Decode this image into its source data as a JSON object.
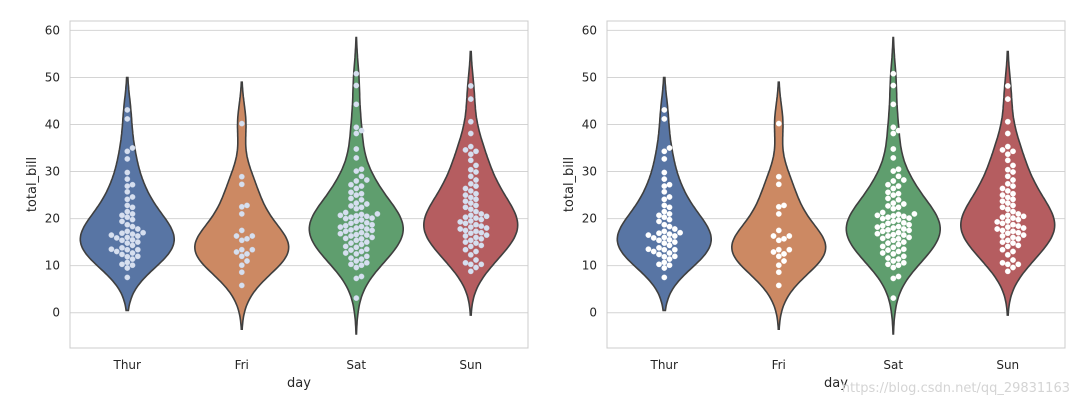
{
  "figure": {
    "watermark": "https://blog.csdn.net/qq_29831163"
  },
  "chart_data": [
    {
      "type": "violin",
      "title": "",
      "xlabel": "day",
      "ylabel": "total_bill",
      "categories": [
        "Thur",
        "Fri",
        "Sat",
        "Sun"
      ],
      "yticks": [
        0,
        10,
        20,
        30,
        40,
        50,
        60
      ],
      "ylim": [
        -7.5,
        62
      ],
      "grid": true,
      "point_color": "#d6dfef",
      "colors": [
        "#5875a4",
        "#cc8963",
        "#5f9e6e",
        "#b55d60"
      ],
      "series": [
        {
          "name": "Thur",
          "range": [
            0.5,
            50
          ],
          "median": 16.2,
          "points": [
            7.5,
            9.5,
            10.1,
            10.3,
            10.7,
            11.4,
            11.9,
            12.0,
            12.4,
            12.7,
            13.0,
            13.4,
            13.4,
            13.5,
            13.8,
            14.3,
            14.8,
            15.0,
            15.4,
            15.5,
            15.9,
            16.0,
            16.3,
            16.5,
            16.7,
            16.9,
            17.0,
            17.3,
            17.8,
            18.3,
            18.7,
            19.4,
            19.8,
            20.3,
            20.7,
            21.0,
            21.5,
            22.4,
            22.8,
            24.1,
            24.6,
            25.7,
            26.9,
            27.2,
            28.4,
            29.8,
            32.7,
            34.3,
            35.0,
            41.2,
            43.1
          ]
        },
        {
          "name": "Fri",
          "range": [
            -3.5,
            49
          ],
          "median": 15.4,
          "points": [
            5.8,
            8.6,
            10.1,
            11.0,
            12.0,
            12.5,
            12.9,
            13.4,
            13.4,
            15.4,
            15.7,
            16.3,
            16.3,
            17.5,
            21.0,
            22.5,
            22.8,
            27.3,
            28.9,
            40.2
          ]
        },
        {
          "name": "Sat",
          "range": [
            -4.5,
            58.5
          ],
          "median": 18.2,
          "points": [
            3.1,
            7.3,
            7.7,
            9.6,
            10.1,
            10.3,
            10.6,
            11.0,
            11.4,
            11.6,
            12.0,
            12.5,
            12.7,
            13.0,
            13.3,
            13.5,
            13.9,
            14.1,
            14.5,
            14.8,
            15.0,
            15.4,
            15.7,
            15.8,
            16.0,
            16.3,
            16.5,
            16.6,
            16.8,
            17.0,
            17.3,
            17.5,
            17.6,
            17.8,
            18.0,
            18.2,
            18.3,
            18.5,
            18.7,
            19.0,
            19.1,
            19.4,
            19.7,
            20.0,
            20.1,
            20.3,
            20.5,
            20.6,
            20.7,
            20.9,
            21.0,
            21.3,
            22.1,
            22.4,
            22.7,
            23.1,
            23.3,
            24.0,
            24.3,
            25.0,
            25.3,
            25.6,
            26.4,
            26.9,
            27.2,
            28.0,
            28.2,
            29.0,
            30.1,
            30.5,
            32.9,
            34.8,
            38.1,
            38.7,
            39.4,
            44.3,
            48.3,
            50.8
          ]
        },
        {
          "name": "Sun",
          "range": [
            -0.5,
            55.5
          ],
          "median": 19.6,
          "points": [
            8.8,
            9.6,
            10.3,
            10.3,
            10.6,
            11.2,
            12.3,
            13.0,
            13.4,
            14.1,
            14.3,
            14.8,
            15.0,
            15.4,
            15.7,
            16.0,
            16.3,
            16.5,
            16.9,
            17.0,
            17.3,
            17.5,
            17.8,
            18.0,
            18.2,
            18.4,
            18.7,
            19.0,
            19.3,
            19.5,
            19.8,
            20.1,
            20.3,
            20.5,
            20.7,
            21.0,
            21.5,
            22.0,
            22.4,
            22.8,
            23.3,
            23.7,
            24.1,
            24.5,
            25.0,
            25.3,
            25.9,
            26.4,
            26.9,
            27.4,
            28.2,
            29.0,
            29.9,
            30.4,
            31.3,
            32.4,
            33.7,
            34.3,
            34.6,
            35.3,
            38.1,
            40.6,
            45.4,
            48.2
          ]
        }
      ]
    },
    {
      "type": "violin",
      "title": "",
      "xlabel": "day",
      "ylabel": "total_bill",
      "categories": [
        "Thur",
        "Fri",
        "Sat",
        "Sun"
      ],
      "yticks": [
        0,
        10,
        20,
        30,
        40,
        50,
        60
      ],
      "ylim": [
        -7.5,
        62
      ],
      "grid": true,
      "point_color": "#ffffff",
      "colors": [
        "#5875a4",
        "#cc8963",
        "#5f9e6e",
        "#b55d60"
      ],
      "series": [
        {
          "name": "Thur",
          "range": [
            0.5,
            50
          ],
          "median": 16.2,
          "points": [
            7.5,
            9.5,
            10.1,
            10.3,
            10.7,
            11.4,
            11.9,
            12.0,
            12.4,
            12.7,
            13.0,
            13.4,
            13.4,
            13.5,
            13.8,
            14.3,
            14.8,
            15.0,
            15.4,
            15.5,
            15.9,
            16.0,
            16.3,
            16.5,
            16.7,
            16.9,
            17.0,
            17.3,
            17.8,
            18.3,
            18.7,
            19.4,
            19.8,
            20.3,
            20.7,
            21.0,
            21.5,
            22.4,
            22.8,
            24.1,
            24.6,
            25.7,
            26.9,
            27.2,
            28.4,
            29.8,
            32.7,
            34.3,
            35.0,
            41.2,
            43.1
          ]
        },
        {
          "name": "Fri",
          "range": [
            -3.5,
            49
          ],
          "median": 15.4,
          "points": [
            5.8,
            8.6,
            10.1,
            11.0,
            12.0,
            12.5,
            12.9,
            13.4,
            13.4,
            15.4,
            15.7,
            16.3,
            16.3,
            17.5,
            21.0,
            22.5,
            22.8,
            27.3,
            28.9,
            40.2
          ]
        },
        {
          "name": "Sat",
          "range": [
            -4.5,
            58.5
          ],
          "median": 18.2,
          "points": [
            3.1,
            7.3,
            7.7,
            9.6,
            10.1,
            10.3,
            10.6,
            11.0,
            11.4,
            11.6,
            12.0,
            12.5,
            12.7,
            13.0,
            13.3,
            13.5,
            13.9,
            14.1,
            14.5,
            14.8,
            15.0,
            15.4,
            15.7,
            15.8,
            16.0,
            16.3,
            16.5,
            16.6,
            16.8,
            17.0,
            17.3,
            17.5,
            17.6,
            17.8,
            18.0,
            18.2,
            18.3,
            18.5,
            18.7,
            19.0,
            19.1,
            19.4,
            19.7,
            20.0,
            20.1,
            20.3,
            20.5,
            20.6,
            20.7,
            20.9,
            21.0,
            21.3,
            22.1,
            22.4,
            22.7,
            23.1,
            23.3,
            24.0,
            24.3,
            25.0,
            25.3,
            25.6,
            26.4,
            26.9,
            27.2,
            28.0,
            28.2,
            29.0,
            30.1,
            30.5,
            32.9,
            34.8,
            38.1,
            38.7,
            39.4,
            44.3,
            48.3,
            50.8
          ]
        },
        {
          "name": "Sun",
          "range": [
            -0.5,
            55.5
          ],
          "median": 19.6,
          "points": [
            8.8,
            9.6,
            10.3,
            10.3,
            10.6,
            11.2,
            12.3,
            13.0,
            13.4,
            14.1,
            14.3,
            14.8,
            15.0,
            15.4,
            15.7,
            16.0,
            16.3,
            16.5,
            16.9,
            17.0,
            17.3,
            17.5,
            17.8,
            18.0,
            18.2,
            18.4,
            18.7,
            19.0,
            19.3,
            19.5,
            19.8,
            20.1,
            20.3,
            20.5,
            20.7,
            21.0,
            21.5,
            22.0,
            22.4,
            22.8,
            23.3,
            23.7,
            24.1,
            24.5,
            25.0,
            25.3,
            25.9,
            26.4,
            26.9,
            27.4,
            28.2,
            29.0,
            29.9,
            30.4,
            31.3,
            32.4,
            33.7,
            34.3,
            34.6,
            35.3,
            38.1,
            40.6,
            45.4,
            48.2
          ]
        }
      ]
    }
  ]
}
